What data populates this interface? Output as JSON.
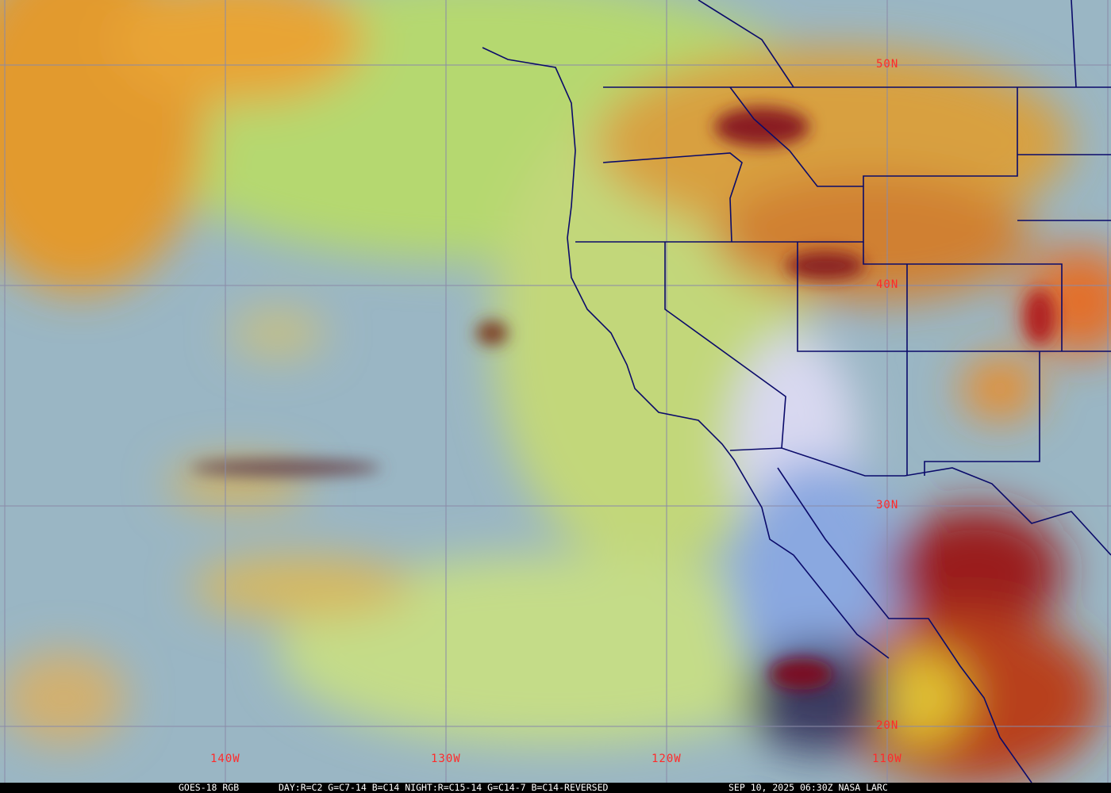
{
  "caption": {
    "satellite": "GOES-18 RGB",
    "recipe": "DAY:R=C2 G=C7-14 B=C14 NIGHT:R=C15-14 G=C14-7 B=C14-REVERSED",
    "timestamp": "SEP 10, 2025 06:30Z NASA LARC"
  },
  "grid": {
    "latitude_labels": [
      "50N",
      "40N",
      "30N",
      "20N"
    ],
    "longitude_labels": [
      "140W",
      "130W",
      "120W",
      "110W"
    ]
  },
  "colors": {
    "ocean_clear": "#93b4c8",
    "low_cloud": "#b8dc6a",
    "high_cloud": "#e8a030",
    "deep_cloud": "#a01818",
    "boundaries": "#0a0a6a",
    "grid": "#8a8aa8",
    "labels": "#ff2a2a"
  }
}
